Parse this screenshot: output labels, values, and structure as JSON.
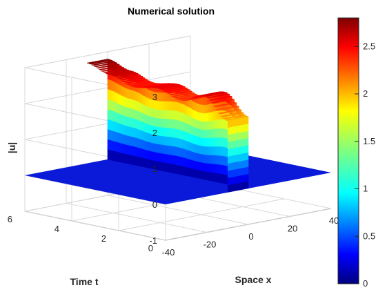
{
  "chart_data": {
    "type": "surface",
    "title": "Numerical solution",
    "xlabel": "Space x",
    "ylabel": "Time t",
    "zlabel": "|u|",
    "xlim": [
      -40,
      40
    ],
    "ylim": [
      0,
      6
    ],
    "zlim": [
      -1,
      3
    ],
    "x_ticks": [
      "-40",
      "-20",
      "0",
      "20",
      "40"
    ],
    "y_ticks": [
      "0",
      "2",
      "4",
      "6"
    ],
    "z_ticks": [
      "-1",
      "0",
      "1",
      "2",
      "3"
    ],
    "grid": true,
    "colormap": "jet",
    "colorbar": {
      "range": [
        0,
        2.8
      ],
      "ticks": [
        "0",
        "0.5",
        "1",
        "1.5",
        "2",
        "2.5"
      ]
    },
    "surface": {
      "description_of_shape": "zero everywhere except a plateau of |u| rising from ~2.0 at t=0 to ~2.8 at t=6, located at x in [-10, 0]",
      "plateau_x_range": [
        -10,
        0
      ],
      "t_samples": [
        0,
        1,
        2,
        3,
        4,
        5,
        6
      ],
      "amplitude_at_t": [
        2.0,
        2.55,
        2.3,
        2.5,
        2.4,
        2.6,
        2.8
      ]
    }
  }
}
